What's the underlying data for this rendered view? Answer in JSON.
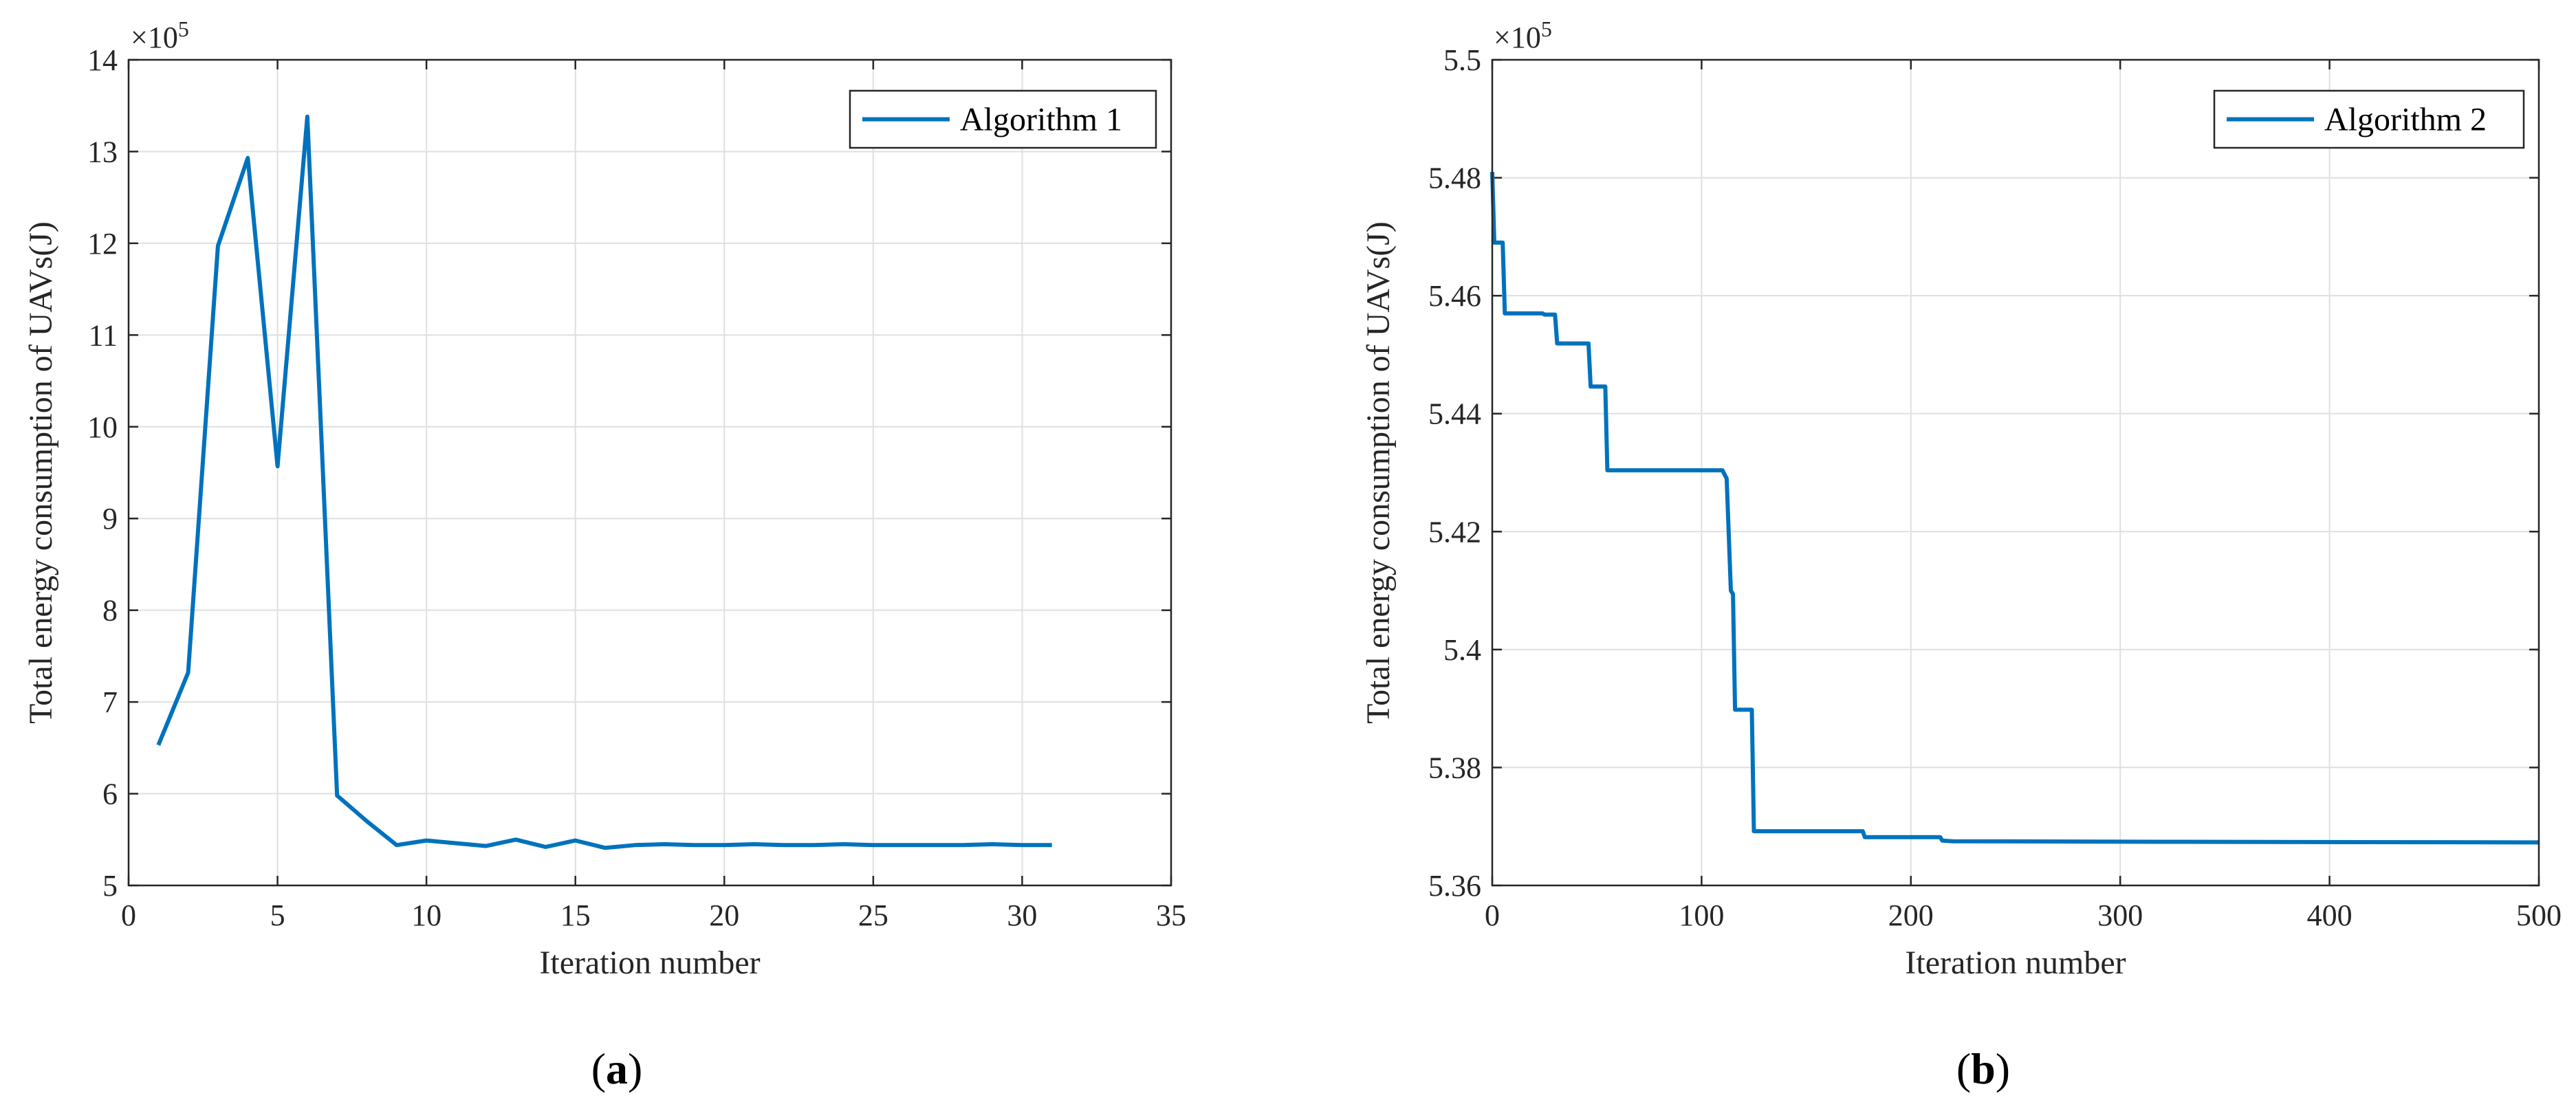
{
  "colors": {
    "series": "#0072BD",
    "grid": "#DFDFDF",
    "axis": "#262626"
  },
  "chart_data": [
    {
      "type": "line",
      "panel_label": "(a)",
      "xlabel": "Iteration number",
      "ylabel": "Total energy consumption of UAVs(J)",
      "y_multiplier": "×10^5",
      "y_multiplier_base": "×10",
      "y_multiplier_exp": "5",
      "xlim": [
        0,
        35
      ],
      "ylim": [
        5,
        14
      ],
      "xticks": [
        0,
        5,
        10,
        15,
        20,
        25,
        30,
        35
      ],
      "yticks": [
        5,
        6,
        7,
        8,
        9,
        10,
        11,
        12,
        13,
        14
      ],
      "grid": true,
      "legend_position": "top-right",
      "series": [
        {
          "name": "Algorithm 1",
          "x": [
            1,
            2,
            3,
            4,
            5,
            6,
            7,
            8,
            9,
            10,
            11,
            12,
            13,
            14,
            15,
            16,
            17,
            18,
            19,
            20,
            21,
            22,
            23,
            24,
            25,
            26,
            27,
            28,
            29,
            30,
            31
          ],
          "values": [
            6.53,
            7.32,
            11.97,
            12.93,
            9.57,
            13.38,
            5.98,
            5.7,
            5.44,
            5.49,
            5.46,
            5.43,
            5.5,
            5.42,
            5.49,
            5.41,
            5.44,
            5.45,
            5.44,
            5.44,
            5.45,
            5.44,
            5.44,
            5.45,
            5.44,
            5.44,
            5.44,
            5.44,
            5.45,
            5.44,
            5.44
          ]
        }
      ]
    },
    {
      "type": "line",
      "panel_label": "(b)",
      "xlabel": "Iteration number",
      "ylabel": "Total energy consumption of UAVs(J)",
      "y_multiplier": "×10^5",
      "y_multiplier_base": "×10",
      "y_multiplier_exp": "5",
      "xlim": [
        0,
        500
      ],
      "ylim": [
        5.36,
        5.5
      ],
      "xticks": [
        0,
        100,
        200,
        300,
        400,
        500
      ],
      "yticks": [
        5.36,
        5.38,
        5.4,
        5.42,
        5.44,
        5.46,
        5.48,
        5.5
      ],
      "ytick_labels": [
        "5.36",
        "5.38",
        "5.4",
        "5.42",
        "5.44",
        "5.46",
        "5.48",
        "5.5"
      ],
      "grid": true,
      "legend_position": "top-right",
      "series": [
        {
          "name": "Algorithm 2",
          "x": [
            0,
            1,
            2,
            3,
            5,
            6,
            24,
            25,
            30,
            31,
            46,
            47,
            53,
            54,
            55,
            110,
            112,
            114,
            115,
            116,
            117,
            124,
            125,
            177,
            178,
            214,
            215,
            220,
            320,
            500
          ],
          "values": [
            5.481,
            5.469,
            5.469,
            5.469,
            5.469,
            5.457,
            5.457,
            5.4568,
            5.4568,
            5.4519,
            5.4519,
            5.4446,
            5.4446,
            5.4446,
            5.4304,
            5.4304,
            5.429,
            5.41,
            5.4094,
            5.3898,
            5.3898,
            5.3898,
            5.3692,
            5.3692,
            5.3682,
            5.3682,
            5.3676,
            5.3675,
            5.3674,
            5.3673
          ]
        }
      ]
    }
  ]
}
